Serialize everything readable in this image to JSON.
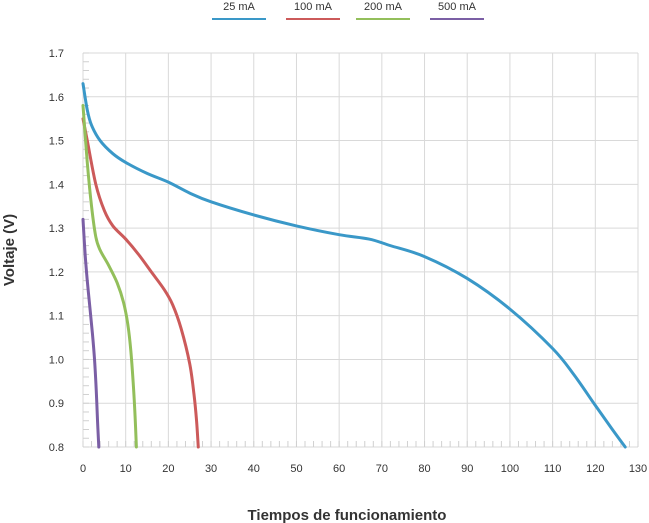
{
  "chart_data": {
    "type": "line",
    "title": "",
    "xlabel": "Tiempos de funcionamiento",
    "ylabel": "Voltaje (V)",
    "xlim": [
      0,
      130
    ],
    "ylim": [
      0.8,
      1.7
    ],
    "x_ticks": [
      "0",
      "10",
      "20",
      "30",
      "40",
      "50",
      "60",
      "70",
      "80",
      "90",
      "100",
      "110",
      "120",
      "130"
    ],
    "y_ticks": [
      "0.8",
      "0.9",
      "1.0",
      "1.1",
      "1.2",
      "1.3",
      "1.4",
      "1.5",
      "1.6",
      "1.7"
    ],
    "grid": true,
    "legend_position": "top-center",
    "series": [
      {
        "name": "25 mA",
        "color": "#3a98c8",
        "x": [
          0,
          1,
          2,
          4,
          7,
          10,
          15,
          20,
          25,
          30,
          40,
          50,
          60,
          67,
          72,
          80,
          90,
          100,
          110,
          115,
          120,
          124,
          127
        ],
        "y": [
          1.63,
          1.57,
          1.535,
          1.5,
          1.47,
          1.45,
          1.425,
          1.405,
          1.38,
          1.36,
          1.33,
          1.305,
          1.285,
          1.275,
          1.26,
          1.235,
          1.185,
          1.115,
          1.025,
          0.965,
          0.895,
          0.84,
          0.8
        ]
      },
      {
        "name": "100 mA",
        "color": "#cc5a5a",
        "x": [
          0,
          1,
          3,
          5,
          7,
          10,
          13,
          16,
          19,
          21,
          23,
          25,
          26,
          26.6,
          27
        ],
        "y": [
          1.55,
          1.5,
          1.4,
          1.34,
          1.305,
          1.275,
          1.24,
          1.2,
          1.16,
          1.125,
          1.07,
          0.99,
          0.92,
          0.86,
          0.8
        ]
      },
      {
        "name": "200 mA",
        "color": "#93bf5b",
        "x": [
          0,
          1,
          2,
          3,
          4,
          6,
          8,
          9.5,
          10.5,
          11.2,
          11.8,
          12.2,
          12.5
        ],
        "y": [
          1.58,
          1.45,
          1.35,
          1.28,
          1.25,
          1.215,
          1.175,
          1.13,
          1.08,
          1.02,
          0.94,
          0.87,
          0.8
        ]
      },
      {
        "name": "500 mA",
        "color": "#7b5fa5",
        "x": [
          0,
          0.5,
          1,
          1.6,
          2.2,
          2.7,
          3.1,
          3.4,
          3.7
        ],
        "y": [
          1.32,
          1.24,
          1.18,
          1.12,
          1.06,
          1.0,
          0.93,
          0.86,
          0.8
        ]
      }
    ]
  }
}
